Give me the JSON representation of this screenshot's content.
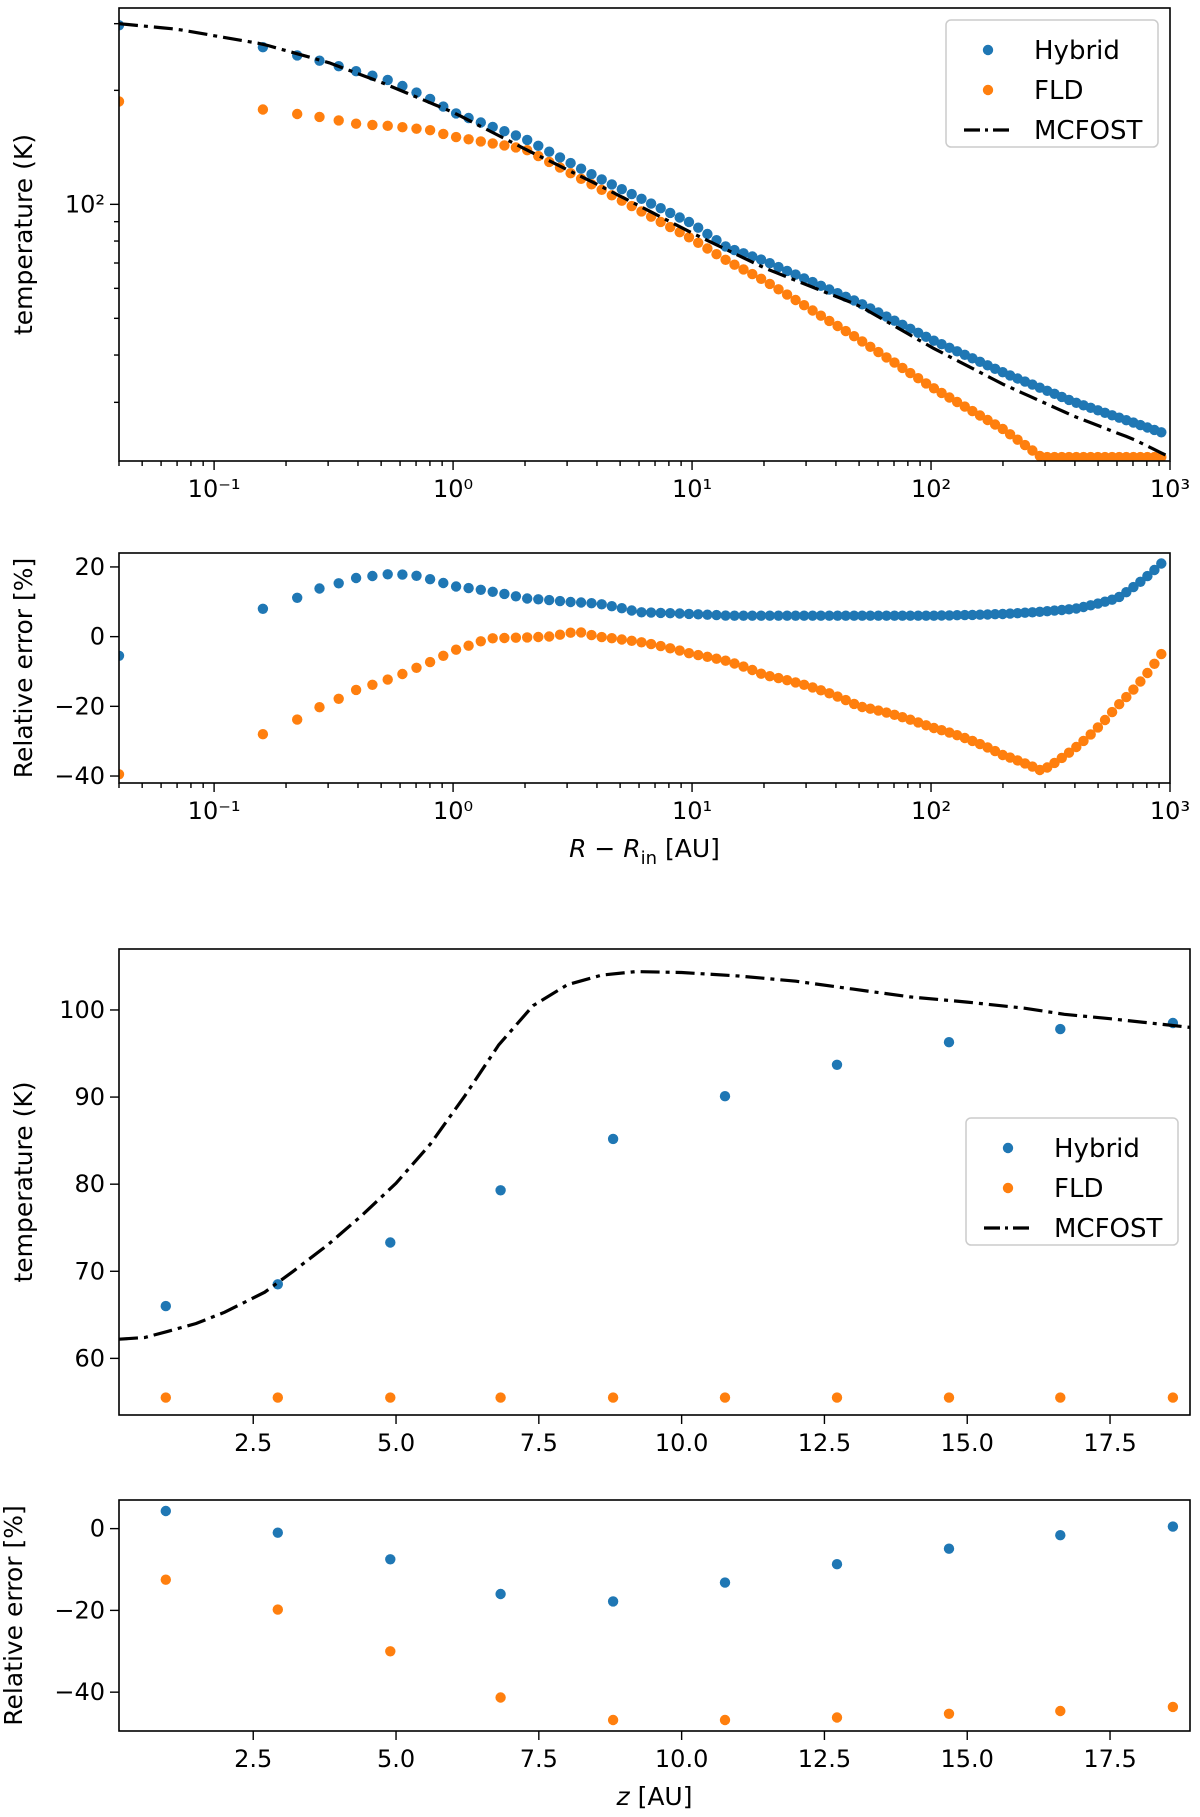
{
  "colors": {
    "hybrid": "#1f77b4",
    "fld": "#ff7f0e",
    "mcfost": "#000000"
  },
  "chart_data": [
    {
      "type": "scatter",
      "xscale": "log",
      "yscale": "log",
      "title": "",
      "xlabel": "",
      "ylabel": "temperature (K)",
      "xlim": [
        0.04,
        1000
      ],
      "ylim": [
        21,
        330
      ],
      "xtick_labels": [
        "10⁻¹",
        "10⁰",
        "10¹",
        "10²",
        "10³"
      ],
      "xtick_values": [
        0.1,
        1,
        10,
        100,
        1000
      ],
      "ytick_labels": [
        "10²"
      ],
      "ytick_values": [
        100
      ],
      "legend": {
        "position": "top-right",
        "entries": [
          "Hybrid",
          "FLD",
          "MCFOST"
        ]
      },
      "series": [
        {
          "name": "Hybrid",
          "kind": "points",
          "x_range": [
            0.04,
            920
          ],
          "n": 95,
          "anchors": [
            [
              0.04,
              297
            ],
            [
              0.16,
              260
            ],
            [
              0.28,
              239
            ],
            [
              0.4,
              224
            ],
            [
              0.55,
              212
            ],
            [
              0.8,
              190
            ],
            [
              1,
              175
            ],
            [
              2,
              149
            ],
            [
              4,
              118
            ],
            [
              10,
              89
            ],
            [
              14,
              77
            ],
            [
              20,
              71
            ],
            [
              50,
              55
            ],
            [
              100,
              44
            ],
            [
              200,
              36
            ],
            [
              400,
              30
            ],
            [
              920,
              25
            ]
          ]
        },
        {
          "name": "FLD",
          "kind": "points",
          "x_range": [
            0.04,
            920
          ],
          "n": 95,
          "anchors": [
            [
              0.04,
              187
            ],
            [
              0.16,
              178
            ],
            [
              0.28,
              170
            ],
            [
              0.4,
              163
            ],
            [
              0.55,
              161
            ],
            [
              0.8,
              157
            ],
            [
              1,
              151
            ],
            [
              2,
              140
            ],
            [
              4,
              111
            ],
            [
              10,
              81
            ],
            [
              14,
              71
            ],
            [
              20,
              63
            ],
            [
              50,
              44
            ],
            [
              100,
              33
            ],
            [
              200,
              25.5
            ],
            [
              290,
              21.5
            ],
            [
              920,
              21.5
            ]
          ]
        },
        {
          "name": "MCFOST",
          "kind": "line",
          "style": "dashdot",
          "x_range": [
            0.04,
            1000
          ],
          "anchors": [
            [
              0.04,
              300
            ],
            [
              0.07,
              290
            ],
            [
              0.16,
              265
            ],
            [
              0.3,
              237
            ],
            [
              0.5,
              210
            ],
            [
              1,
              175
            ],
            [
              2,
              140
            ],
            [
              4,
              113
            ],
            [
              10,
              84
            ],
            [
              20,
              68
            ],
            [
              50,
              54
            ],
            [
              100,
              42
            ],
            [
              200,
              33.5
            ],
            [
              400,
              27.5
            ],
            [
              700,
              24
            ],
            [
              1000,
              21.5
            ]
          ]
        }
      ]
    },
    {
      "type": "scatter",
      "xscale": "log",
      "yscale": "linear",
      "title": "",
      "xlabel": "R − R_in [AU]",
      "xlabel_main": "R − R",
      "xlabel_sub": "in",
      "xlabel_unit": " [AU]",
      "ylabel": "Relative error [%]",
      "xlim": [
        0.04,
        1000
      ],
      "ylim": [
        -42,
        24
      ],
      "xtick_labels": [
        "10⁻¹",
        "10⁰",
        "10¹",
        "10²",
        "10³"
      ],
      "xtick_values": [
        0.1,
        1,
        10,
        100,
        1000
      ],
      "ytick_labels": [
        "20",
        "0",
        "−20",
        "−40"
      ],
      "ytick_values": [
        20,
        0,
        -20,
        -40
      ],
      "series": [
        {
          "name": "Hybrid",
          "kind": "points",
          "x_range": [
            0.04,
            920
          ],
          "n": 95,
          "anchors": [
            [
              0.04,
              -5.5
            ],
            [
              0.16,
              8
            ],
            [
              0.28,
              14
            ],
            [
              0.4,
              17
            ],
            [
              0.55,
              18
            ],
            [
              0.7,
              17.5
            ],
            [
              1,
              14.5
            ],
            [
              2,
              11
            ],
            [
              3,
              10
            ],
            [
              4,
              9.5
            ],
            [
              6,
              7
            ],
            [
              10,
              6.5
            ],
            [
              14,
              6
            ],
            [
              20,
              6
            ],
            [
              50,
              6
            ],
            [
              100,
              6
            ],
            [
              200,
              6.5
            ],
            [
              400,
              8
            ],
            [
              600,
              11
            ],
            [
              920,
              21
            ]
          ]
        },
        {
          "name": "FLD",
          "kind": "points",
          "x_range": [
            0.04,
            920
          ],
          "n": 95,
          "anchors": [
            [
              0.04,
              -39.5
            ],
            [
              0.16,
              -28
            ],
            [
              0.28,
              -20
            ],
            [
              0.4,
              -15
            ],
            [
              0.55,
              -12
            ],
            [
              0.7,
              -9
            ],
            [
              1,
              -4
            ],
            [
              1.4,
              -0.5
            ],
            [
              2.5,
              0
            ],
            [
              3.3,
              1.5
            ],
            [
              4,
              0
            ],
            [
              6,
              -1.5
            ],
            [
              10,
              -5
            ],
            [
              14,
              -7
            ],
            [
              20,
              -11
            ],
            [
              50,
              -20
            ],
            [
              100,
              -26
            ],
            [
              200,
              -34
            ],
            [
              290,
              -38.5
            ],
            [
              400,
              -32
            ],
            [
              600,
              -20
            ],
            [
              920,
              -5
            ]
          ]
        }
      ]
    },
    {
      "type": "scatter",
      "xscale": "linear",
      "yscale": "linear",
      "title": "",
      "xlabel": "",
      "ylabel": "temperature (K)",
      "xlim": [
        0.15,
        18.9
      ],
      "ylim": [
        53.5,
        107
      ],
      "xtick_labels": [
        "2.5",
        "5.0",
        "7.5",
        "10.0",
        "12.5",
        "15.0",
        "17.5"
      ],
      "xtick_values": [
        2.5,
        5,
        7.5,
        10,
        12.5,
        15,
        17.5
      ],
      "ytick_labels": [
        "60",
        "70",
        "80",
        "90",
        "100"
      ],
      "ytick_values": [
        60,
        70,
        80,
        90,
        100
      ],
      "legend": {
        "position": "center-right",
        "entries": [
          "Hybrid",
          "FLD",
          "MCFOST"
        ]
      },
      "series": [
        {
          "name": "Hybrid",
          "kind": "points",
          "x": [
            0.97,
            2.93,
            4.9,
            6.83,
            8.8,
            10.76,
            12.72,
            14.68,
            16.63,
            18.6
          ],
          "y": [
            66.0,
            68.5,
            73.3,
            79.3,
            85.2,
            90.1,
            93.7,
            96.3,
            97.8,
            98.5
          ]
        },
        {
          "name": "FLD",
          "kind": "points",
          "x": [
            0.97,
            2.93,
            4.9,
            6.83,
            8.8,
            10.76,
            12.72,
            14.68,
            16.63,
            18.6
          ],
          "y": [
            55.5,
            55.5,
            55.5,
            55.5,
            55.5,
            55.5,
            55.5,
            55.5,
            55.5,
            55.5
          ]
        },
        {
          "name": "MCFOST",
          "kind": "line",
          "style": "dashdot",
          "x": [
            0.15,
            0.6,
            1.0,
            1.5,
            2.0,
            2.7,
            3.2,
            3.8,
            4.4,
            5.0,
            5.6,
            6.2,
            6.8,
            7.4,
            8.0,
            8.6,
            9.2,
            10.0,
            11.0,
            12.0,
            13.0,
            14.0,
            15.0,
            16.0,
            16.7,
            17.5,
            18.2,
            18.9
          ],
          "y": [
            62.2,
            62.4,
            63.1,
            64.0,
            65.3,
            67.6,
            70.0,
            73.0,
            76.4,
            80.1,
            84.6,
            90.1,
            96.0,
            100.5,
            102.9,
            104.0,
            104.4,
            104.3,
            103.9,
            103.3,
            102.4,
            101.5,
            100.9,
            100.2,
            99.5,
            99.0,
            98.5,
            98.0
          ]
        }
      ]
    },
    {
      "type": "scatter",
      "xscale": "linear",
      "yscale": "linear",
      "title": "",
      "xlabel": "z [AU]",
      "xlabel_var": "z",
      "xlabel_unit": " [AU]",
      "ylabel": "Relative error [%]",
      "xlim": [
        0.15,
        18.9
      ],
      "ylim": [
        -49.5,
        7
      ],
      "xtick_labels": [
        "2.5",
        "5.0",
        "7.5",
        "10.0",
        "12.5",
        "15.0",
        "17.5"
      ],
      "xtick_values": [
        2.5,
        5,
        7.5,
        10,
        12.5,
        15,
        17.5
      ],
      "ytick_labels": [
        "0",
        "−20",
        "−40"
      ],
      "ytick_values": [
        0,
        -20,
        -40
      ],
      "series": [
        {
          "name": "Hybrid",
          "kind": "points",
          "x": [
            0.97,
            2.93,
            4.9,
            6.83,
            8.8,
            10.76,
            12.72,
            14.68,
            16.63,
            18.6
          ],
          "y": [
            4.3,
            -1.0,
            -7.5,
            -16.0,
            -17.8,
            -13.2,
            -8.7,
            -4.9,
            -1.6,
            0.5
          ]
        },
        {
          "name": "FLD",
          "kind": "points",
          "x": [
            0.97,
            2.93,
            4.9,
            6.83,
            8.8,
            10.76,
            12.72,
            14.68,
            16.63,
            18.6
          ],
          "y": [
            -12.5,
            -19.8,
            -30.0,
            -41.3,
            -46.8,
            -46.8,
            -46.2,
            -45.3,
            -44.6,
            -43.6
          ]
        }
      ]
    }
  ]
}
